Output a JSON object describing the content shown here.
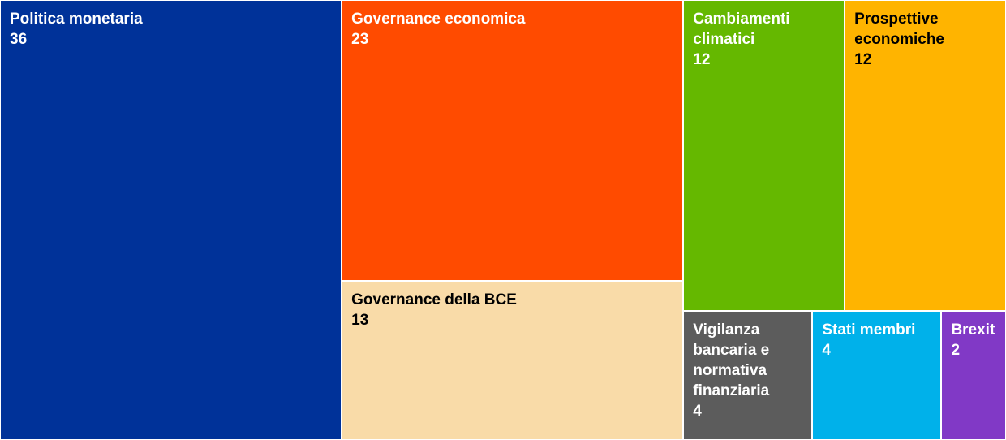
{
  "chart_data": {
    "type": "treemap",
    "categories": [
      "Politica monetaria",
      "Governance economica",
      "Governance della BCE",
      "Cambiamenti climatici",
      "Prospettive economiche",
      "Vigilanza bancaria e normativa finanziaria",
      "Stati membri",
      "Brexit"
    ],
    "values": [
      36,
      23,
      13,
      12,
      12,
      4,
      4,
      2
    ],
    "colors": [
      "#003299",
      "#ff4b00",
      "#f9dba8",
      "#65b800",
      "#ffb400",
      "#5c5c5c",
      "#00b1ea",
      "#8139c6"
    ]
  }
}
